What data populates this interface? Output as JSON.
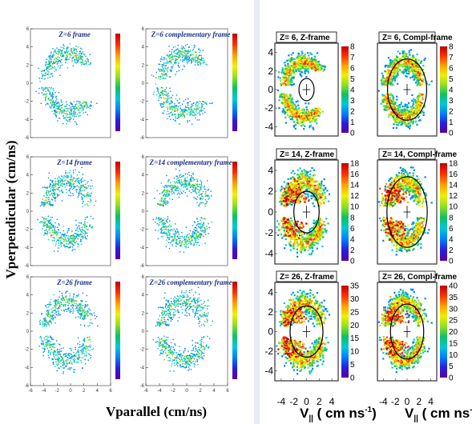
{
  "figure": {
    "left_ylabel": "Vperpendicular (cm/ns)",
    "left_xlabel": "Vparallel (cm/ns)",
    "right_xlabel_symbol": "V",
    "right_xlabel_sub": "||",
    "right_xlabel_units": " ( cm ns",
    "right_xlabel_exp": "-1",
    "right_xlabel_close": ")"
  },
  "colors": {
    "palette": [
      "#5a00a0",
      "#2a1ee0",
      "#0080ff",
      "#00c8d8",
      "#10c060",
      "#90e020",
      "#f0f000",
      "#ffa000",
      "#ff3000",
      "#c00000"
    ],
    "ring": "#000000",
    "title_blue": "#1a2f8a"
  },
  "chart_data": [
    {
      "type": "heatmap",
      "panel": "left",
      "title": "Z=6 frame",
      "xlabel": "Vparallel (cm/ns)",
      "ylabel": "Vperpendicular (cm/ns)",
      "xlim": [
        -6,
        6
      ],
      "ylim": [
        -6,
        6
      ],
      "y_ticks": [
        "-6",
        "-4",
        "-2",
        "0",
        "2",
        "4",
        "6"
      ],
      "x_ticks": [],
      "hole": "right",
      "core": false
    },
    {
      "type": "heatmap",
      "panel": "left",
      "title": "Z=6 complementary frame",
      "xlim": [
        -6,
        6
      ],
      "ylim": [
        -6,
        6
      ],
      "y_ticks": [
        "-6",
        "-4",
        "-2",
        "0",
        "2",
        "4",
        "6"
      ],
      "x_ticks": [],
      "hole": "right",
      "core": false
    },
    {
      "type": "heatmap",
      "panel": "left",
      "title": "Z=14 frame",
      "xlim": [
        -6,
        6
      ],
      "ylim": [
        -6,
        6
      ],
      "y_ticks": [
        "-6",
        "-4",
        "-2",
        "0",
        "2",
        "4",
        "6"
      ],
      "x_ticks": [],
      "hole": "gap",
      "core": false
    },
    {
      "type": "heatmap",
      "panel": "left",
      "title": "Z=14 complementary frame",
      "xlim": [
        -6,
        6
      ],
      "ylim": [
        -6,
        6
      ],
      "y_ticks": [
        "-6",
        "-4",
        "-2",
        "0",
        "2",
        "4",
        "6"
      ],
      "x_ticks": [],
      "hole": "gap",
      "core": false
    },
    {
      "type": "heatmap",
      "panel": "left",
      "title": "Z=26 frame",
      "xlim": [
        -6,
        6
      ],
      "ylim": [
        -6,
        6
      ],
      "y_ticks": [
        "-6",
        "-4",
        "-2",
        "0",
        "2",
        "4",
        "6"
      ],
      "x_ticks": [
        "-6",
        "-4",
        "-2",
        "0",
        "2",
        "4",
        "6"
      ],
      "hole": "gap",
      "core": false
    },
    {
      "type": "heatmap",
      "panel": "left",
      "title": "Z=26 complementary frame",
      "xlim": [
        -6,
        6
      ],
      "ylim": [
        -6,
        6
      ],
      "y_ticks": [
        "-6",
        "-4",
        "-2",
        "0",
        "2",
        "4",
        "6"
      ],
      "x_ticks": [
        "-6",
        "-4",
        "-2",
        "0",
        "2",
        "4",
        "6"
      ],
      "hole": "gap",
      "core": false
    },
    {
      "type": "heatmap",
      "panel": "right",
      "title": "Z= 6, Z-frame",
      "xlim": [
        -5,
        5
      ],
      "ylim": [
        -5,
        5
      ],
      "y_ticks": [
        "-4",
        "-2",
        "0",
        "2",
        "4"
      ],
      "x_ticks": [],
      "z_ticks": [
        "0",
        "1",
        "2",
        "3",
        "4",
        "5",
        "6",
        "7",
        "8"
      ],
      "zmax": 8,
      "ring": {
        "cx": 0,
        "cy": 0,
        "r": 1.2
      },
      "hole": "right",
      "core": false
    },
    {
      "type": "heatmap",
      "panel": "right",
      "title": "Z= 6, Compl-frame",
      "xlim": [
        -5,
        5
      ],
      "ylim": [
        -5,
        5
      ],
      "y_ticks": [],
      "x_ticks": [],
      "z_ticks": [
        "0",
        "1",
        "2",
        "3",
        "4",
        "5",
        "6",
        "7",
        "8"
      ],
      "zmax": 8,
      "ring": {
        "cx": 0,
        "cy": 0,
        "r": 3.3
      },
      "hole": "none",
      "core": false
    },
    {
      "type": "heatmap",
      "panel": "right",
      "title": "Z= 14, Z-frame",
      "xlim": [
        -5,
        5
      ],
      "ylim": [
        -5,
        5
      ],
      "y_ticks": [
        "-4",
        "-2",
        "0",
        "2",
        "4"
      ],
      "x_ticks": [],
      "z_ticks": [
        "0",
        "2",
        "4",
        "6",
        "8",
        "10",
        "12",
        "14",
        "16",
        "18"
      ],
      "zmax": 18,
      "ring": {
        "cx": 0,
        "cy": 0,
        "r": 2.0
      },
      "hole": "gap",
      "core": true
    },
    {
      "type": "heatmap",
      "panel": "right",
      "title": "Z= 14, Compl-frame",
      "xlim": [
        -5,
        5
      ],
      "ylim": [
        -5,
        5
      ],
      "y_ticks": [],
      "x_ticks": [],
      "z_ticks": [
        "0",
        "2",
        "4",
        "6",
        "8",
        "10",
        "12",
        "14",
        "16",
        "18"
      ],
      "zmax": 18,
      "ring": {
        "cx": 0,
        "cy": 0,
        "r": 3.4
      },
      "hole": "gap",
      "core": true
    },
    {
      "type": "heatmap",
      "panel": "right",
      "title": "Z= 26, Z-frame",
      "xlim": [
        -5,
        5
      ],
      "ylim": [
        -5,
        5
      ],
      "y_ticks": [
        "-4",
        "-2",
        "0",
        "2",
        "4"
      ],
      "x_ticks": [
        "-4",
        "-2",
        "0",
        "2",
        "4"
      ],
      "z_ticks": [
        "0",
        "5",
        "10",
        "15",
        "20",
        "25",
        "30",
        "35"
      ],
      "zmax": 35,
      "ring": {
        "cx": 0,
        "cy": 0,
        "r": 2.6
      },
      "hole": "gap",
      "core": true
    },
    {
      "type": "heatmap",
      "panel": "right",
      "title": "Z= 26, Compl-frame",
      "xlim": [
        -5,
        5
      ],
      "ylim": [
        -5,
        5
      ],
      "y_ticks": [],
      "x_ticks": [
        "-4",
        "-2",
        "0",
        "2",
        "4"
      ],
      "z_ticks": [
        "0",
        "5",
        "10",
        "15",
        "20",
        "25",
        "30",
        "35",
        "40"
      ],
      "zmax": 40,
      "ring": {
        "cx": 0,
        "cy": 0,
        "r": 2.8
      },
      "hole": "gap",
      "core": true
    }
  ]
}
